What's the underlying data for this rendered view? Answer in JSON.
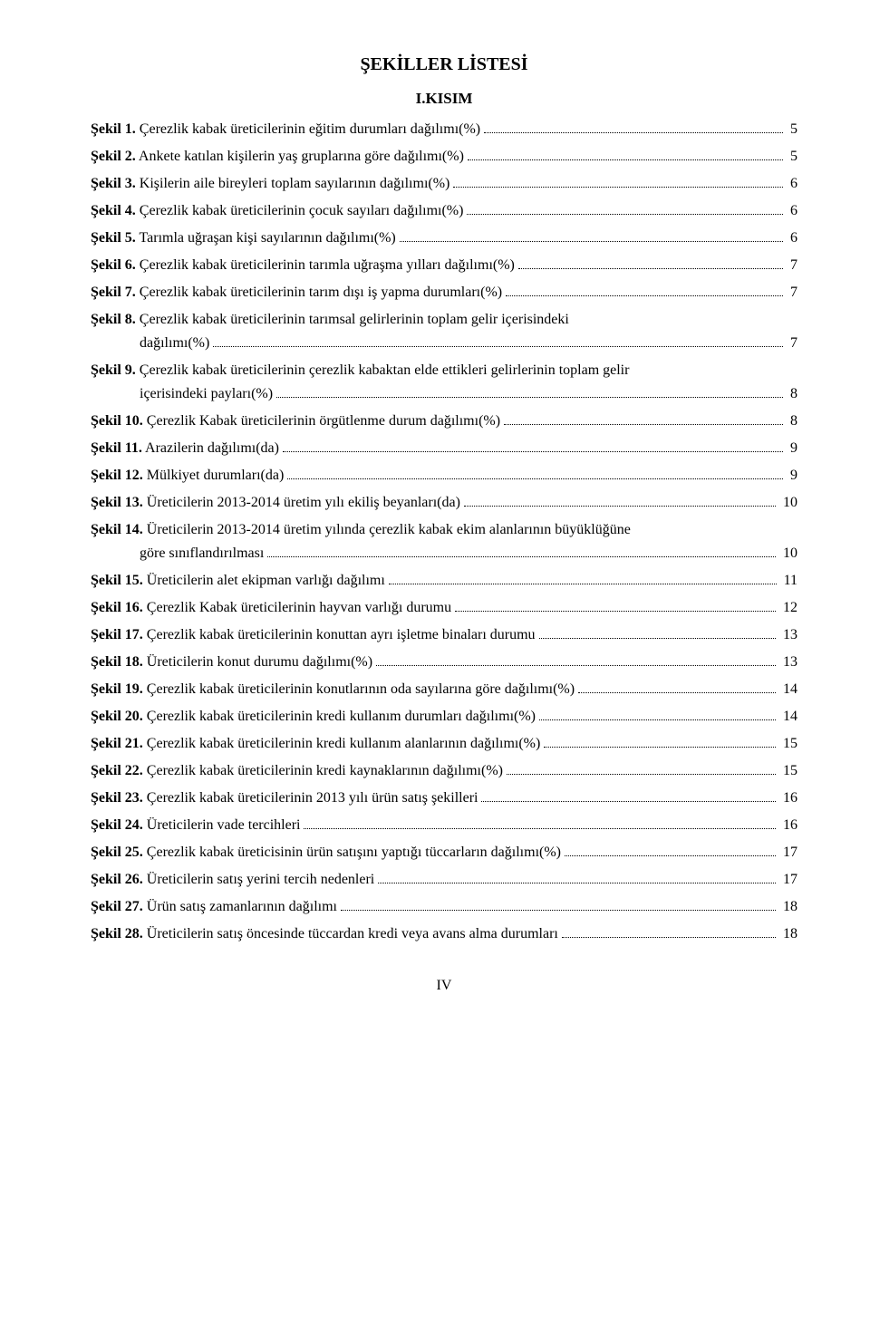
{
  "title": "ŞEKİLLER LİSTESİ",
  "section": "I.KISIM",
  "footer": "IV",
  "entries": [
    {
      "num": "Şekil 1.",
      "text": " Çerezlik kabak üreticilerinin eğitim durumları dağılımı(%)",
      "page": "5",
      "wrap": null
    },
    {
      "num": "Şekil 2.",
      "text": " Ankete katılan kişilerin yaş gruplarına göre dağılımı(%)",
      "page": "5",
      "wrap": null
    },
    {
      "num": "Şekil 3.",
      "text": " Kişilerin aile bireyleri toplam sayılarının dağılımı(%)",
      "page": "6",
      "wrap": null
    },
    {
      "num": "Şekil 4.",
      "text": " Çerezlik kabak üreticilerinin çocuk sayıları dağılımı(%)",
      "page": "6",
      "wrap": null
    },
    {
      "num": "Şekil 5.",
      "text": " Tarımla uğraşan kişi sayılarının dağılımı(%)",
      "page": "6",
      "wrap": null
    },
    {
      "num": "Şekil 6.",
      "text": " Çerezlik kabak üreticilerinin tarımla uğraşma yılları dağılımı(%)",
      "page": "7",
      "wrap": null
    },
    {
      "num": "Şekil 7.",
      "text": " Çerezlik kabak üreticilerinin tarım dışı iş yapma durumları(%)",
      "page": "7",
      "wrap": null
    },
    {
      "num": "Şekil 8.",
      "text": " Çerezlik kabak üreticilerinin tarımsal gelirlerinin toplam gelir içerisindeki",
      "page": "7",
      "wrap": "dağılımı(%)"
    },
    {
      "num": "Şekil 9.",
      "text": " Çerezlik kabak üreticilerinin çerezlik kabaktan elde ettikleri gelirlerinin toplam gelir",
      "page": "8",
      "wrap": "içerisindeki payları(%)"
    },
    {
      "num": "Şekil 10.",
      "text": " Çerezlik Kabak üreticilerinin örgütlenme durum dağılımı(%)",
      "page": "8",
      "wrap": null
    },
    {
      "num": "Şekil 11.",
      "text": " Arazilerin dağılımı(da)",
      "page": "9",
      "wrap": null
    },
    {
      "num": "Şekil 12.",
      "text": " Mülkiyet durumları(da)",
      "page": "9",
      "wrap": null
    },
    {
      "num": "Şekil 13.",
      "text": " Üreticilerin 2013-2014 üretim yılı ekiliş beyanları(da)",
      "page": "10",
      "wrap": null
    },
    {
      "num": "Şekil 14.",
      "text": " Üreticilerin 2013-2014 üretim yılında çerezlik kabak ekim alanlarının büyüklüğüne",
      "page": "10",
      "wrap": "göre sınıflandırılması"
    },
    {
      "num": "Şekil 15.",
      "text": " Üreticilerin alet ekipman varlığı dağılımı",
      "page": "11",
      "wrap": null
    },
    {
      "num": "Şekil 16.",
      "text": " Çerezlik Kabak üreticilerinin hayvan varlığı durumu",
      "page": "12",
      "wrap": null
    },
    {
      "num": "Şekil 17.",
      "text": " Çerezlik kabak üreticilerinin konuttan ayrı işletme binaları durumu",
      "page": "13",
      "wrap": null
    },
    {
      "num": "Şekil 18.",
      "text": " Üreticilerin konut durumu dağılımı(%)",
      "page": "13",
      "wrap": null
    },
    {
      "num": "Şekil 19.",
      "text": " Çerezlik kabak üreticilerinin konutlarının oda sayılarına göre dağılımı(%)",
      "page": "14",
      "wrap": null
    },
    {
      "num": "Şekil 20.",
      "text": " Çerezlik kabak üreticilerinin kredi kullanım durumları dağılımı(%)",
      "page": "14",
      "wrap": null
    },
    {
      "num": "Şekil 21.",
      "text": " Çerezlik kabak üreticilerinin kredi kullanım alanlarının dağılımı(%)",
      "page": "15",
      "wrap": null
    },
    {
      "num": "Şekil 22.",
      "text": " Çerezlik kabak üreticilerinin kredi kaynaklarının dağılımı(%)",
      "page": "15",
      "wrap": null
    },
    {
      "num": "Şekil 23.",
      "text": " Çerezlik kabak üreticilerinin 2013 yılı ürün satış şekilleri",
      "page": "16",
      "wrap": null
    },
    {
      "num": "Şekil 24.",
      "text": " Üreticilerin vade tercihleri",
      "page": "16",
      "wrap": null
    },
    {
      "num": "Şekil 25.",
      "text": " Çerezlik kabak üreticisinin ürün satışını yaptığı tüccarların dağılımı(%)",
      "page": "17",
      "wrap": null
    },
    {
      "num": "Şekil 26.",
      "text": " Üreticilerin satış yerini tercih nedenleri",
      "page": "17",
      "wrap": null
    },
    {
      "num": "Şekil 27.",
      "text": " Ürün satış zamanlarının dağılımı",
      "page": "18",
      "wrap": null
    },
    {
      "num": "Şekil 28.",
      "text": " Üreticilerin satış öncesinde tüccardan kredi veya avans alma durumları",
      "page": "18",
      "wrap": null
    }
  ]
}
